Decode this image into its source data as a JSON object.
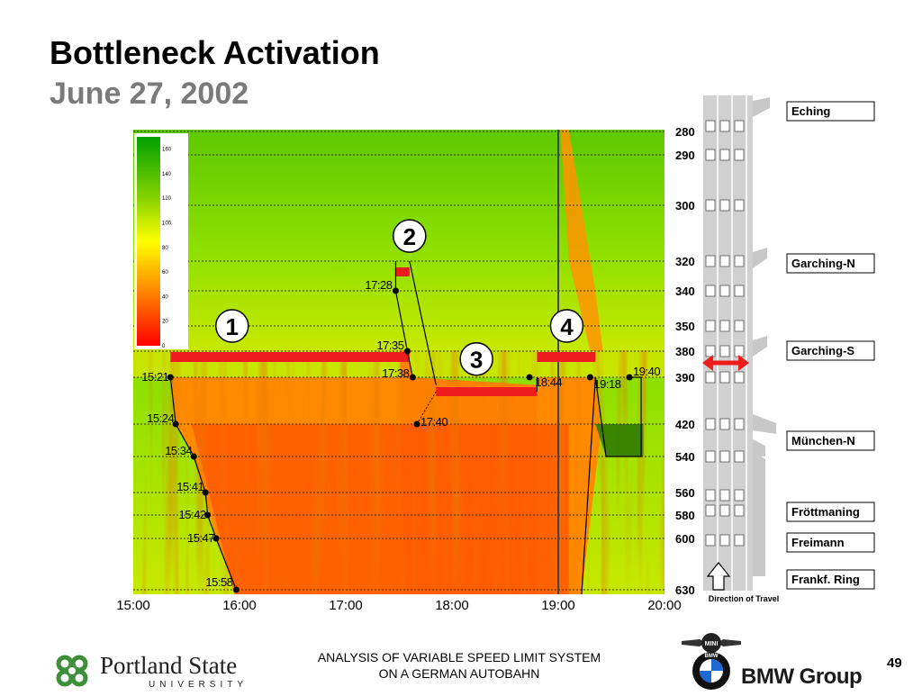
{
  "slide": {
    "title": "Bottleneck Activation",
    "subtitle": "June 27, 2002",
    "footer_line1": "ANALYSIS OF VARIABLE SPEED LIMIT SYSTEM",
    "footer_line2": "ON A GERMAN AUTOBAHN",
    "page_number": "49"
  },
  "logos": {
    "psu_name": "Portland State",
    "psu_sub": "UNIVERSITY",
    "bmw_group": "BMW Group",
    "mini": "MINI",
    "bmw": "BMW"
  },
  "chart_data": {
    "type": "heatmap",
    "x_axis": {
      "ticks": [
        "15:00",
        "16:00",
        "17:00",
        "18:00",
        "19:00",
        "20:00"
      ],
      "range": [
        15.0,
        20.0
      ]
    },
    "y_axis": {
      "ticks": [
        280,
        290,
        300,
        320,
        340,
        350,
        380,
        390,
        420,
        540,
        560,
        580,
        600,
        630
      ]
    },
    "colorbar": {
      "ticks": [
        160,
        140,
        120,
        100,
        80,
        60,
        40,
        20,
        0
      ],
      "range": [
        0,
        170
      ],
      "colors": [
        "#ff0000",
        "#ff9a00",
        "#ffff00",
        "#00a000"
      ]
    },
    "queue_front": [
      {
        "label": "15:21",
        "t": 15.35,
        "loc": 390
      },
      {
        "label": "15:24",
        "t": 15.4,
        "loc": 420
      },
      {
        "label": "15:34",
        "t": 15.57,
        "loc": 540
      },
      {
        "label": "15:41",
        "t": 15.68,
        "loc": 560
      },
      {
        "label": "15:42",
        "t": 15.7,
        "loc": 580
      },
      {
        "label": "15:47",
        "t": 15.78,
        "loc": 600
      },
      {
        "label": "15:58",
        "t": 15.97,
        "loc": 630
      }
    ],
    "event_points": [
      {
        "label": "17:28",
        "t": 17.47,
        "loc": 340
      },
      {
        "label": "17:35",
        "t": 17.58,
        "loc": 380
      },
      {
        "label": "17:38",
        "t": 17.63,
        "loc": 390
      },
      {
        "label": "17:40",
        "t": 17.67,
        "loc": 420
      },
      {
        "label": "18:44",
        "t": 18.73,
        "loc": 390
      },
      {
        "label": "19:18",
        "t": 19.3,
        "loc": 390
      },
      {
        "label": "19:40",
        "t": 19.67,
        "loc": 390
      }
    ],
    "bottleneck_markers": [
      {
        "label": "1",
        "t": 15.93,
        "loc": 350
      },
      {
        "label": "2",
        "t": 17.6,
        "loc": 311
      },
      {
        "label": "3",
        "t": 18.23,
        "loc": 383
      },
      {
        "label": "4",
        "t": 19.08,
        "loc": 350
      }
    ],
    "active_sections": [
      {
        "t_start": 15.35,
        "t_end": 17.6,
        "loc": 382
      },
      {
        "t_start": 17.47,
        "t_end": 17.6,
        "loc": 321
      },
      {
        "t_start": 17.85,
        "t_end": 18.8,
        "loc": 395
      },
      {
        "t_start": 18.8,
        "t_end": 19.35,
        "loc": 382
      }
    ],
    "roadway": {
      "direction_label": "Direction of Travel",
      "sections": [
        {
          "name": "Eching",
          "loc": 280
        },
        {
          "name": "Garching-N",
          "loc": 320
        },
        {
          "name": "Garching-S",
          "loc": 380
        },
        {
          "name": "München-N",
          "loc": 540
        },
        {
          "name": "Fröttmaning",
          "loc": 580
        },
        {
          "name": "Freimann",
          "loc": 600
        },
        {
          "name": "Frankf. Ring",
          "loc": 630
        }
      ]
    }
  }
}
